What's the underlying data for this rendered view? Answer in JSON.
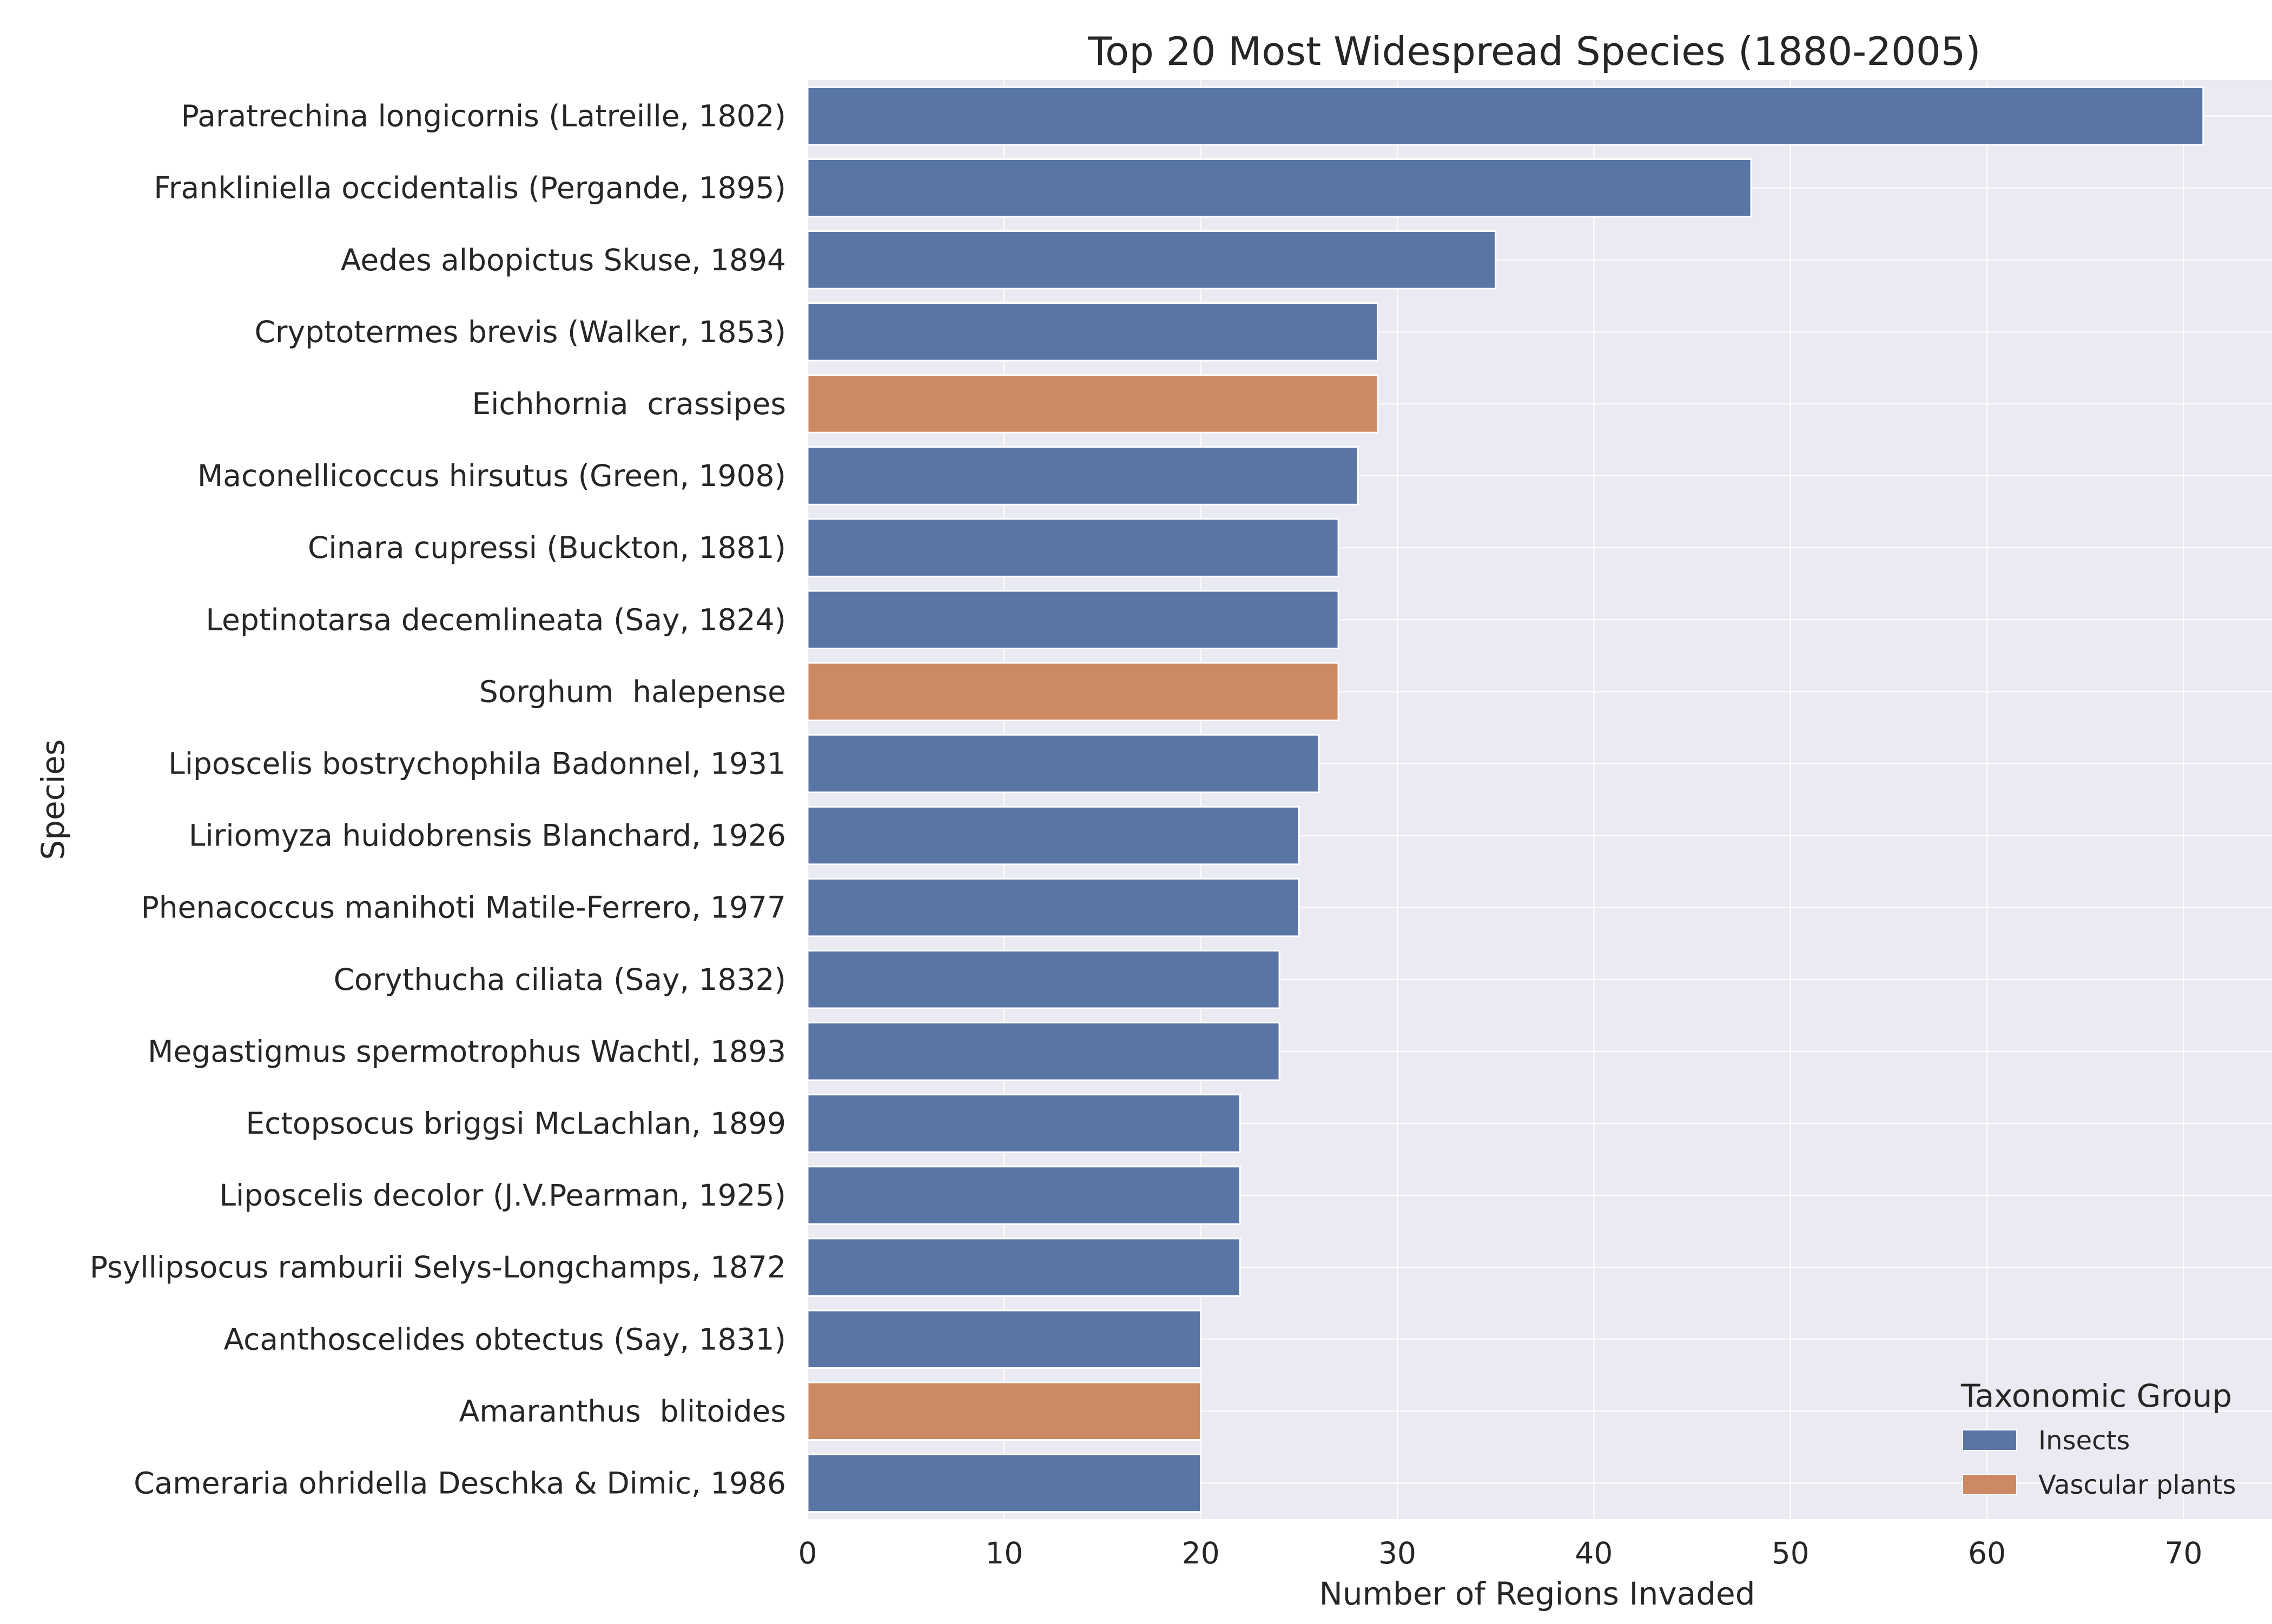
{
  "chart_data": {
    "type": "bar",
    "orientation": "horizontal",
    "title": "Top 20 Most Widespread Species (1880-2005)",
    "xlabel": "Number of Regions Invaded",
    "ylabel": "Species",
    "xlim": [
      0,
      74.5
    ],
    "xticks": [
      0,
      10,
      20,
      30,
      40,
      50,
      60,
      70
    ],
    "grid": true,
    "legend": {
      "title": "Taxonomic Group",
      "placement": "lower-right",
      "entries": [
        {
          "label": "Insects",
          "color": "#5975a4"
        },
        {
          "label": "Vascular plants",
          "color": "#cc8963"
        }
      ]
    },
    "colors": {
      "Insects": "#5975a4",
      "Vascular plants": "#cc8963",
      "plot_background": "#eaeaf2",
      "grid": "#ffffff"
    },
    "categories": [
      "Paratrechina longicornis (Latreille, 1802)",
      "Frankliniella occidentalis (Pergande, 1895)",
      "Aedes albopictus Skuse, 1894",
      "Cryptotermes brevis (Walker, 1853)",
      "Eichhornia  crassipes",
      "Maconellicoccus hirsutus (Green, 1908)",
      "Cinara cupressi (Buckton, 1881)",
      "Leptinotarsa decemlineata (Say, 1824)",
      "Sorghum  halepense",
      "Liposcelis bostrychophila Badonnel, 1931",
      "Liriomyza huidobrensis Blanchard, 1926",
      "Phenacoccus manihoti Matile-Ferrero, 1977",
      "Corythucha ciliata (Say, 1832)",
      "Megastigmus spermotrophus Wachtl, 1893",
      "Ectopsocus briggsi McLachlan, 1899",
      "Liposcelis decolor (J.V.Pearman, 1925)",
      "Psyllipsocus ramburii Selys-Longchamps, 1872",
      "Acanthoscelides obtectus (Say, 1831)",
      "Amaranthus  blitoides",
      "Cameraria ohridella Deschka & Dimic, 1986"
    ],
    "values": [
      71,
      48,
      35,
      29,
      29,
      28,
      27,
      27,
      27,
      26,
      25,
      25,
      24,
      24,
      22,
      22,
      22,
      20,
      20,
      20
    ],
    "groups": [
      "Insects",
      "Insects",
      "Insects",
      "Insects",
      "Vascular plants",
      "Insects",
      "Insects",
      "Insects",
      "Vascular plants",
      "Insects",
      "Insects",
      "Insects",
      "Insects",
      "Insects",
      "Insects",
      "Insects",
      "Insects",
      "Insects",
      "Vascular plants",
      "Insects"
    ]
  }
}
